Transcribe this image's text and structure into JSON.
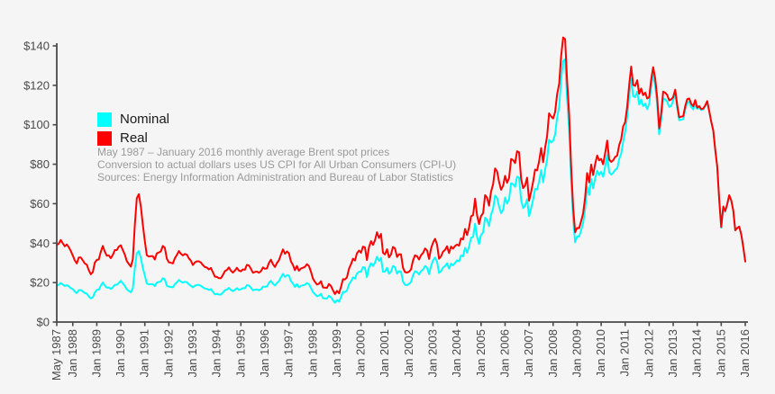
{
  "page": {
    "background_color": "#f5f5f5",
    "axis_color": "#4a4a4a",
    "tick_text_color": "#4a4a4a",
    "annotation_color": "#9a9a9a"
  },
  "legend": {
    "items": [
      {
        "label": "Nominal",
        "color": "#00ffff"
      },
      {
        "label": "Real",
        "color": "#ff0000"
      }
    ]
  },
  "annotation": {
    "lines": [
      "May 1987 – January 2016 monthly average Brent spot prices",
      "Conversion to actual dollars uses US CPI for All Urban Consumers (CPI-U)",
      "Sources: Energy Information Administration and Bureau of Labor Statistics"
    ]
  },
  "chart_data": {
    "type": "line",
    "title": "",
    "xlabel": "",
    "ylabel": "",
    "x_unit": "month",
    "x_start": "May 1987",
    "x_end": "Jan 2016",
    "ylim": [
      0,
      140
    ],
    "grid": false,
    "legend_position": "upper-left-inside",
    "y_ticks": [
      {
        "label": "$0",
        "value": 0
      },
      {
        "label": "$20",
        "value": 20
      },
      {
        "label": "$40",
        "value": 40
      },
      {
        "label": "$60",
        "value": 60
      },
      {
        "label": "$80",
        "value": 80
      },
      {
        "label": "$100",
        "value": 100
      },
      {
        "label": "$120",
        "value": 120
      },
      {
        "label": "$140",
        "value": 140
      }
    ],
    "x_ticks": [
      {
        "label": "May 1987",
        "month": 0
      },
      {
        "label": "Jan 1988",
        "month": 8
      },
      {
        "label": "Jan 1989",
        "month": 20
      },
      {
        "label": "Jan 1990",
        "month": 32
      },
      {
        "label": "Jan 1991",
        "month": 44
      },
      {
        "label": "Jan 1992",
        "month": 56
      },
      {
        "label": "Jan 1993",
        "month": 68
      },
      {
        "label": "Jan 1994",
        "month": 80
      },
      {
        "label": "Jan 1995",
        "month": 92
      },
      {
        "label": "Jan 1996",
        "month": 104
      },
      {
        "label": "Jan 1997",
        "month": 116
      },
      {
        "label": "Jan 1998",
        "month": 128
      },
      {
        "label": "Jan 1999",
        "month": 140
      },
      {
        "label": "Jan 2000",
        "month": 152
      },
      {
        "label": "Jan 2001",
        "month": 164
      },
      {
        "label": "Jan 2002",
        "month": 176
      },
      {
        "label": "Jan 2003",
        "month": 188
      },
      {
        "label": "Jan 2004",
        "month": 200
      },
      {
        "label": "Jan 2005",
        "month": 212
      },
      {
        "label": "Jan 2006",
        "month": 224
      },
      {
        "label": "Jan 2007",
        "month": 236
      },
      {
        "label": "Jan 2008",
        "month": 248
      },
      {
        "label": "Jan 2009",
        "month": 260
      },
      {
        "label": "Jan 2010",
        "month": 272
      },
      {
        "label": "Jan 2011",
        "month": 284
      },
      {
        "label": "Jan 2012",
        "month": 296
      },
      {
        "label": "Jan 2013",
        "month": 308
      },
      {
        "label": "Jan 2014",
        "month": 320
      },
      {
        "label": "Jan 2015",
        "month": 332
      },
      {
        "label": "Jan 2016",
        "month": 344
      }
    ],
    "series": [
      {
        "name": "Nominal",
        "color": "#00ffff",
        "values": [
          18.6,
          18.9,
          19.8,
          19.0,
          18.3,
          18.7,
          18.1,
          17.2,
          16.7,
          15.5,
          14.7,
          16.2,
          16.2,
          15.5,
          14.7,
          14.4,
          13.0,
          12.0,
          12.5,
          14.9,
          16.3,
          16.4,
          18.5,
          20.0,
          18.5,
          17.4,
          17.5,
          16.8,
          17.6,
          18.9,
          18.9,
          19.8,
          20.9,
          19.6,
          18.4,
          16.6,
          15.8,
          15.1,
          17.1,
          27.2,
          34.9,
          36.0,
          32.5,
          27.4,
          23.6,
          19.5,
          19.1,
          19.2,
          19.2,
          18.2,
          20.0,
          20.3,
          20.6,
          22.2,
          21.6,
          18.4,
          17.9,
          17.8,
          17.6,
          19.1,
          20.1,
          21.3,
          20.5,
          20.0,
          20.4,
          20.2,
          19.1,
          18.4,
          17.6,
          18.4,
          18.8,
          18.8,
          18.4,
          17.6,
          17.0,
          16.8,
          16.3,
          16.7,
          15.4,
          14.0,
          14.3,
          13.9,
          13.9,
          14.9,
          16.1,
          16.5,
          17.3,
          16.3,
          15.7,
          16.3,
          17.2,
          16.3,
          16.6,
          17.2,
          17.1,
          18.7,
          18.5,
          17.4,
          16.1,
          16.4,
          16.5,
          16.1,
          16.6,
          17.9,
          17.9,
          18.0,
          19.8,
          20.9,
          19.4,
          18.5,
          19.8,
          20.7,
          22.6,
          24.4,
          22.9,
          23.7,
          23.6,
          20.8,
          19.5,
          17.8,
          19.2,
          17.6,
          18.4,
          18.6,
          18.9,
          19.8,
          19.2,
          17.2,
          15.2,
          14.1,
          13.1,
          13.4,
          14.3,
          12.1,
          12.0,
          11.9,
          13.3,
          12.6,
          11.1,
          9.8,
          11.1,
          10.3,
          12.5,
          15.3,
          15.2,
          15.9,
          19.1,
          20.6,
          22.6,
          22.0,
          24.6,
          25.5,
          25.5,
          27.8,
          27.5,
          22.8,
          27.7,
          29.8,
          28.4,
          30.1,
          33.1,
          31.0,
          32.5,
          25.5,
          25.6,
          27.5,
          24.5,
          25.6,
          28.4,
          27.8,
          24.6,
          25.7,
          25.6,
          20.5,
          18.9,
          18.7,
          19.4,
          20.3,
          23.7,
          25.7,
          25.4,
          24.1,
          25.8,
          26.6,
          28.4,
          27.6,
          24.3,
          28.3,
          31.2,
          32.7,
          30.5,
          24.9,
          25.8,
          27.6,
          28.4,
          29.8,
          27.1,
          29.6,
          28.8,
          29.9,
          31.3,
          30.8,
          33.8,
          33.3,
          37.6,
          35.1,
          38.2,
          42.7,
          43.2,
          49.8,
          43.1,
          39.6,
          44.2,
          45.4,
          52.9,
          51.9,
          48.6,
          54.4,
          57.5,
          64.1,
          62.9,
          58.5,
          55.2,
          56.9,
          63.1,
          60.1,
          62.1,
          70.4,
          69.9,
          68.6,
          73.7,
          73.2,
          61.7,
          57.8,
          58.9,
          62.3,
          53.7,
          57.6,
          62.1,
          67.5,
          67.2,
          71.1,
          77.0,
          70.8,
          77.2,
          82.3,
          92.4,
          91.0,
          92.0,
          95.0,
          103.7,
          109.1,
          123.0,
          132.3,
          133.2,
          113.2,
          97.2,
          71.9,
          52.5,
          40.4,
          43.4,
          43.3,
          46.5,
          50.2,
          57.3,
          68.6,
          64.4,
          72.5,
          67.7,
          72.8,
          76.7,
          74.5,
          76.2,
          73.7,
          78.8,
          84.8,
          75.9,
          74.8,
          75.6,
          77.1,
          77.8,
          82.7,
          85.3,
          91.4,
          96.5,
          104.0,
          114.6,
          123.3,
          114.5,
          114.0,
          116.8,
          110.2,
          112.8,
          109.5,
          110.8,
          107.9,
          110.7,
          119.3,
          125.4,
          119.7,
          110.3,
          95.2,
          102.6,
          113.4,
          112.9,
          111.7,
          109.1,
          109.5,
          112.3,
          116.1,
          108.5,
          102.3,
          102.6,
          102.9,
          107.9,
          111.3,
          111.6,
          109.1,
          107.8,
          110.8,
          108.1,
          108.9,
          107.5,
          107.8,
          109.5,
          111.8,
          106.8,
          101.6,
          97.1,
          87.4,
          79.0,
          62.3,
          47.8,
          58.1,
          55.9,
          59.5,
          64.1,
          61.5,
          56.6,
          46.5,
          47.6,
          48.4,
          44.3,
          38.0,
          30.7
        ]
      },
      {
        "name": "Real",
        "color": "#ff0000",
        "values": [
          39.1,
          39.7,
          41.6,
          39.9,
          38.4,
          39.3,
          38.0,
          36.1,
          33.7,
          31.3,
          29.7,
          32.7,
          32.7,
          31.3,
          29.7,
          29.1,
          26.3,
          24.2,
          25.3,
          30.1,
          31.5,
          31.7,
          35.7,
          38.6,
          35.7,
          33.6,
          33.8,
          32.4,
          34.0,
          36.5,
          36.5,
          38.2,
          38.9,
          36.5,
          34.2,
          30.9,
          29.4,
          28.1,
          31.8,
          49.0,
          62.8,
          64.8,
          58.5,
          49.3,
          41.1,
          33.9,
          33.2,
          33.4,
          33.4,
          31.7,
          34.8,
          35.3,
          35.8,
          38.6,
          37.6,
          32.0,
          30.3,
          30.1,
          29.7,
          32.3,
          34.0,
          36.0,
          34.6,
          33.8,
          34.5,
          34.1,
          32.3,
          31.1,
          28.9,
          30.2,
          30.8,
          30.8,
          30.2,
          28.9,
          27.9,
          27.6,
          26.7,
          27.4,
          25.3,
          23.0,
          22.9,
          22.2,
          22.2,
          23.8,
          25.8,
          26.4,
          27.7,
          26.1,
          25.1,
          26.1,
          27.5,
          26.1,
          25.7,
          26.7,
          26.5,
          29.0,
          28.7,
          27.0,
          25.0,
          25.4,
          25.6,
          25.0,
          25.7,
          27.7,
          27.0,
          27.2,
          29.9,
          31.6,
          29.3,
          27.9,
          29.9,
          31.3,
          34.1,
          36.8,
          34.6,
          35.8,
          34.9,
          30.8,
          28.9,
          26.3,
          28.4,
          26.0,
          27.2,
          27.5,
          28.0,
          29.3,
          28.4,
          25.5,
          22.0,
          20.4,
          19.0,
          19.4,
          20.7,
          17.5,
          17.4,
          17.3,
          19.3,
          18.3,
          16.1,
          14.2,
          15.8,
          14.6,
          17.8,
          21.7,
          21.6,
          22.6,
          27.1,
          29.3,
          32.1,
          31.2,
          34.9,
          36.2,
          35.1,
          38.2,
          37.8,
          31.4,
          38.1,
          41.0,
          39.1,
          41.4,
          45.5,
          42.6,
          44.7,
          35.1,
          34.3,
          36.9,
          32.8,
          34.3,
          38.1,
          37.3,
          33.0,
          34.4,
          34.3,
          27.5,
          25.3,
          25.1,
          25.5,
          26.7,
          31.2,
          33.8,
          33.4,
          31.7,
          33.9,
          35.0,
          37.3,
          36.3,
          32.0,
          37.2,
          40.2,
          42.2,
          39.3,
          32.1,
          33.3,
          35.6,
          36.6,
          38.4,
          35.0,
          38.2,
          37.2,
          38.6,
          39.3,
          38.7,
          42.4,
          41.8,
          47.2,
          44.1,
          47.9,
          53.6,
          54.2,
          62.5,
          54.1,
          49.7,
          53.7,
          55.2,
          64.3,
          63.1,
          59.0,
          66.1,
          69.9,
          77.9,
          76.4,
          71.1,
          67.1,
          69.1,
          74.1,
          70.6,
          73.0,
          82.7,
          82.1,
          80.6,
          86.6,
          86.0,
          72.5,
          67.9,
          69.2,
          73.2,
          61.5,
          66.0,
          71.1,
          77.3,
          76.9,
          81.4,
          88.2,
          81.1,
          88.4,
          94.2,
          105.8,
          104.2,
          103.2,
          106.5,
          115.4,
          120.8,
          135.0,
          144.3,
          143.4,
          122.3,
          105.1,
          78.6,
          58.3,
          45.5,
          47.7,
          47.6,
          51.2,
          55.2,
          63.0,
          75.5,
          70.8,
          79.8,
          74.5,
          80.1,
          84.4,
          82.0,
          82.7,
          80.0,
          85.5,
          92.0,
          82.4,
          81.2,
          82.0,
          83.7,
          84.4,
          89.7,
          92.6,
          99.2,
          101.3,
          109.2,
          120.3,
          129.5,
          120.2,
          119.7,
          122.6,
          115.7,
          118.4,
          115.0,
          116.3,
          113.3,
          114.0,
          122.9,
          129.2,
          123.3,
          113.6,
          98.1,
          105.7,
          116.8,
          116.3,
          115.1,
          112.4,
          112.8,
          114.0,
          117.8,
          110.1,
          103.8,
          104.1,
          104.4,
          109.5,
          113.0,
          113.3,
          110.7,
          109.4,
          112.5,
          108.7,
          109.5,
          108.0,
          108.2,
          109.8,
          112.0,
          107.0,
          101.7,
          97.1,
          87.3,
          78.8,
          62.0,
          48.2,
          58.6,
          56.3,
          59.8,
          64.3,
          61.6,
          56.6,
          46.5,
          47.6,
          48.4,
          44.3,
          38.0,
          30.7
        ]
      }
    ]
  }
}
